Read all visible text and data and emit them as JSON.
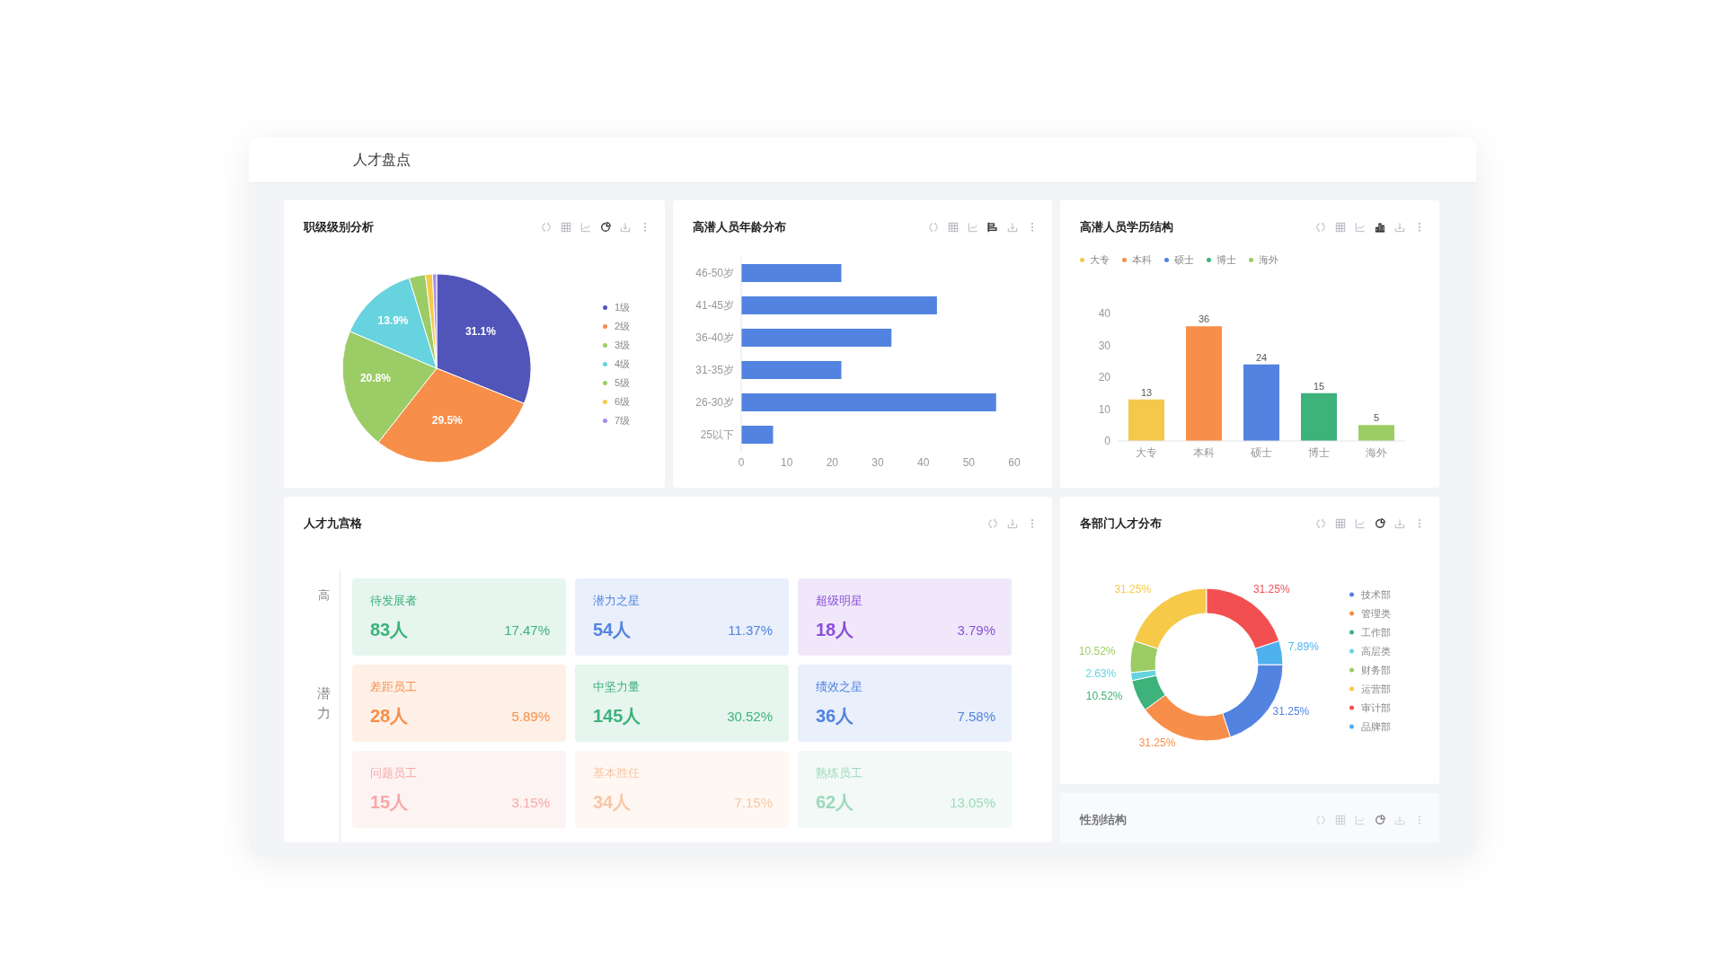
{
  "chart_data": [
    {
      "type": "other",
      "title": "人才盘点"
    },
    {
      "type": "pie",
      "title": "职级级别分析",
      "categories": [
        "1级",
        "2级",
        "3级",
        "4级",
        "5级",
        "6级",
        "7级"
      ],
      "values": [
        31.1,
        29.5,
        20.8,
        13.9,
        2.8,
        1.2,
        0.7
      ],
      "colors": [
        "#5154b8",
        "#f78e49",
        "#9ccc65",
        "#66d3de",
        "#9ccc65",
        "#f7c948",
        "#a98ee8"
      ],
      "value_labels": [
        "31.1%",
        "29.5%",
        "20.8%",
        "13.9%",
        null,
        null,
        null
      ],
      "legend": "right"
    },
    {
      "type": "bar",
      "title": "高潜人员年龄分布",
      "orientation": "horizontal",
      "categories": [
        "46-50岁",
        "41-45岁",
        "36-40岁",
        "31-35岁",
        "26-30岁",
        "25以下"
      ],
      "values": [
        22,
        43,
        33,
        22,
        56,
        7
      ],
      "color": "#5283e0",
      "xlim": [
        0,
        60
      ],
      "xticks": [
        0,
        10,
        20,
        30,
        40,
        50,
        60
      ]
    },
    {
      "type": "bar",
      "title": "高潜人员学历结构",
      "categories": [
        "大专",
        "本科",
        "硕士",
        "博士",
        "海外"
      ],
      "stacked": true,
      "series": [
        {
          "name": "大专",
          "color": "#f5c84c",
          "values": [
            13,
            null,
            null,
            null,
            null
          ]
        },
        {
          "name": "本科",
          "color": "#f78e49",
          "values": [
            null,
            36,
            null,
            null,
            null
          ]
        },
        {
          "name": "硕士",
          "color": "#5283e0",
          "values": [
            null,
            null,
            24,
            null,
            null
          ]
        },
        {
          "name": "博士",
          "color": "#3db27b",
          "values": [
            null,
            null,
            null,
            15,
            null
          ]
        },
        {
          "name": "海外",
          "color": "#9ccc65",
          "values": [
            null,
            null,
            null,
            null,
            5
          ]
        }
      ],
      "ylim": [
        0,
        40
      ],
      "yticks": [
        0,
        10,
        20,
        30,
        40
      ],
      "data_labels": true,
      "legend": "top left"
    },
    {
      "type": "other",
      "title": "人才九宫格",
      "ylabel": "潜力",
      "colors": [
        "#3db27b",
        "#5283e0",
        "#8a4fdb",
        "#f78e49",
        "#3db27b",
        "#5283e0",
        "#f25050",
        "#f78e49",
        "#3db27b"
      ],
      "annotations": [
        "高",
        "待发展者",
        "83人",
        "17.47%",
        "潜力之星",
        "54人",
        "11.37%",
        "超级明星",
        "18人",
        "3.79%",
        "差距员工",
        "28人",
        "5.89%",
        "中坚力量",
        "145人",
        "30.52%",
        "绩效之星",
        "36人",
        "7.58%",
        "问题员工",
        "15人",
        "3.15%",
        "基本胜任",
        "34人",
        "7.15%",
        "熟练员工",
        "62人",
        "13.05%"
      ]
    },
    {
      "type": "donut",
      "title": "各部门人才分布",
      "categories": [
        "技术部",
        "管理类",
        "工作部",
        "高层类",
        "财务部",
        "运营部",
        "审计部",
        "品牌部"
      ],
      "values": [
        31.25,
        31.25,
        10.52,
        2.63,
        10.52,
        31.25,
        31.25,
        7.89
      ],
      "colors": [
        "#5283e0",
        "#f78e49",
        "#3db27b",
        "#66d3de",
        "#9ccc65",
        "#f7c948",
        "#f25050",
        "#4fb0ee"
      ],
      "value_labels": [
        "31.25%",
        "31.25%",
        "10.52%",
        "2.63%",
        "10.52%",
        "31.25%",
        "31.25%",
        "7.89%"
      ],
      "legend": "right"
    },
    {
      "type": "other",
      "title": "性别结构"
    }
  ]
}
